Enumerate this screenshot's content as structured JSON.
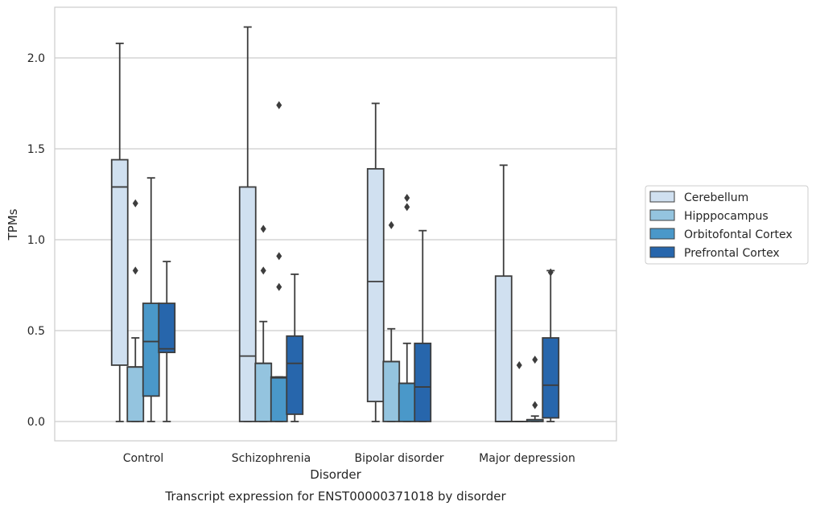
{
  "chart_data": {
    "type": "box",
    "xlabel": "Disorder",
    "ylabel": "TPMs",
    "caption": "Transcript expression for ENST00000371018 by disorder",
    "categories": [
      "Control",
      "Schizophrenia",
      "Bipolar disorder",
      "Major depression"
    ],
    "ylim": [
      -0.1,
      2.28
    ],
    "yticks": [
      0.0,
      0.5,
      1.0,
      1.5,
      2.0
    ],
    "ytick_labels": [
      "0.0",
      "0.5",
      "1.0",
      "1.5",
      "2.0"
    ],
    "grid": "horizontal",
    "legend_position": "right",
    "series": [
      {
        "name": "Cerebellum",
        "color": "#d0e0f0",
        "boxes": [
          {
            "min": 0.0,
            "q1": 0.31,
            "median": 1.29,
            "q3": 1.44,
            "max": 2.08,
            "outliers": []
          },
          {
            "min": 0.0,
            "q1": 0.0,
            "median": 0.36,
            "q3": 1.29,
            "max": 2.17,
            "outliers": []
          },
          {
            "min": 0.0,
            "q1": 0.11,
            "median": 0.77,
            "q3": 1.39,
            "max": 1.75,
            "outliers": []
          },
          {
            "min": 0.0,
            "q1": 0.0,
            "median": 0.0,
            "q3": 0.8,
            "max": 1.41,
            "outliers": []
          }
        ]
      },
      {
        "name": "Hipppocampus",
        "color": "#94c4df",
        "boxes": [
          {
            "min": 0.0,
            "q1": 0.0,
            "median": 0.3,
            "q3": 0.3,
            "max": 0.46,
            "outliers": [
              0.83,
              1.2
            ]
          },
          {
            "min": 0.0,
            "q1": 0.0,
            "median": 0.32,
            "q3": 0.32,
            "max": 0.55,
            "outliers": [
              0.83,
              1.06
            ]
          },
          {
            "min": 0.0,
            "q1": 0.0,
            "median": 0.33,
            "q3": 0.33,
            "max": 0.51,
            "outliers": [
              1.08
            ]
          },
          {
            "min": 0.0,
            "q1": 0.0,
            "median": 0.0,
            "q3": 0.0,
            "max": 0.0,
            "outliers": [
              0.31
            ]
          }
        ]
      },
      {
        "name": "Orbitofontal Cortex",
        "color": "#4a98c9",
        "boxes": [
          {
            "min": 0.0,
            "q1": 0.14,
            "median": 0.44,
            "q3": 0.65,
            "max": 1.34,
            "outliers": []
          },
          {
            "min": 0.0,
            "q1": 0.0,
            "median": 0.24,
            "q3": 0.245,
            "max": 0.245,
            "outliers": [
              0.74,
              0.91,
              1.74
            ]
          },
          {
            "min": 0.0,
            "q1": 0.0,
            "median": 0.21,
            "q3": 0.21,
            "max": 0.43,
            "outliers": [
              1.18,
              1.23
            ]
          },
          {
            "min": 0.0,
            "q1": 0.0,
            "median": 0.01,
            "q3": 0.01,
            "max": 0.03,
            "outliers": [
              0.09,
              0.34
            ]
          }
        ]
      },
      {
        "name": "Prefrontal Cortex",
        "color": "#2766ac",
        "boxes": [
          {
            "min": 0.0,
            "q1": 0.38,
            "median": 0.4,
            "q3": 0.65,
            "max": 0.88,
            "outliers": []
          },
          {
            "min": 0.0,
            "q1": 0.04,
            "median": 0.32,
            "q3": 0.47,
            "max": 0.81,
            "outliers": []
          },
          {
            "min": 0.0,
            "q1": 0.0,
            "median": 0.19,
            "q3": 0.43,
            "max": 1.05,
            "outliers": []
          },
          {
            "min": 0.0,
            "q1": 0.02,
            "median": 0.2,
            "q3": 0.46,
            "max": 0.83,
            "outliers": [
              0.82
            ]
          }
        ]
      }
    ]
  }
}
